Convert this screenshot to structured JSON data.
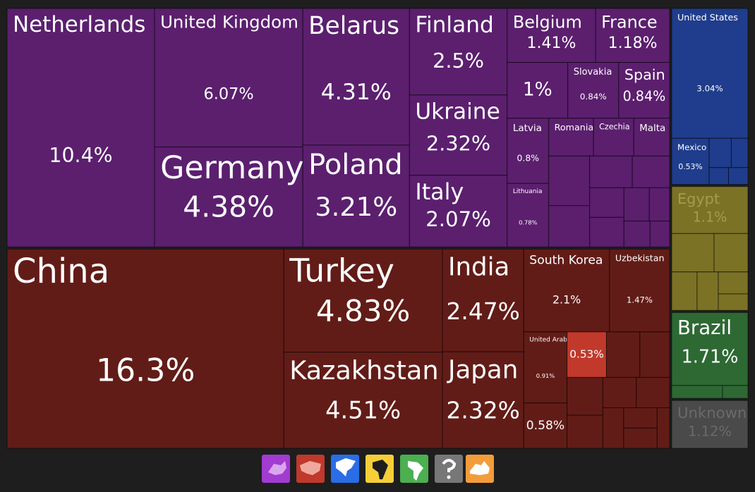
{
  "chart_data": {
    "type": "treemap",
    "series": [
      {
        "color": "#5b1f6e",
        "label_color": "#ffffff",
        "categories": [
          "Netherlands",
          "United Kingdom",
          "Germany",
          "Belarus",
          "Poland",
          "Finland",
          "Ukraine",
          "Italy",
          "Belgium",
          "France",
          null,
          "Slovakia",
          "Spain",
          "Latvia",
          "Lithuania",
          "Romania",
          "Czechia",
          "Malta",
          null,
          null,
          null,
          null,
          null,
          null,
          null,
          null,
          null,
          null
        ],
        "values": [
          10.4,
          6.07,
          4.38,
          4.31,
          3.21,
          2.5,
          2.32,
          2.07,
          1.41,
          1.18,
          1,
          0.84,
          0.84,
          0.8,
          0.78,
          0.5,
          0.45,
          0.4,
          0.6,
          0.5,
          0.4,
          0.35,
          0.3,
          0.3,
          0.25,
          0.2,
          0.2,
          0.15
        ],
        "value_labels": [
          "10.4%",
          "6.07%",
          "4.38%",
          "4.31%",
          "3.21%",
          "2.5%",
          "2.32%",
          "2.07%",
          "1.41%",
          "1.18%",
          "1%",
          "0.84%",
          "0.84%",
          "0.8%",
          "0.78%",
          null,
          null,
          null,
          null,
          null,
          null,
          null,
          null,
          null,
          null,
          null,
          null,
          null
        ]
      },
      {
        "color": "#621c17",
        "label_color": "#ffffff",
        "highlight_index": 9,
        "highlight_color": "#c0392b",
        "categories": [
          "China",
          "Turkey",
          "Kazakhstan",
          "India",
          "Japan",
          "South Korea",
          "Uzbekistan",
          "United Arab...",
          null,
          null,
          null,
          null,
          null,
          null,
          null,
          null,
          null,
          null,
          null,
          null
        ],
        "values": [
          16.3,
          4.83,
          4.51,
          2.47,
          2.32,
          2.1,
          1.47,
          0.91,
          0.58,
          0.53,
          0.45,
          0.4,
          0.4,
          0.35,
          0.3,
          0.3,
          0.25,
          0.2,
          0.2,
          0.15
        ],
        "value_labels": [
          "16.3%",
          "4.83%",
          "4.51%",
          "2.47%",
          "2.32%",
          "2.1%",
          "1.47%",
          "0.91%",
          "0.58%",
          "0.53%",
          null,
          null,
          null,
          null,
          null,
          null,
          null,
          null,
          null,
          null
        ]
      },
      {
        "color": "#1f3d8c",
        "label_color": "#ffffff",
        "categories": [
          "United States",
          "Mexico",
          null,
          null,
          null,
          null
        ],
        "values": [
          3.04,
          0.53,
          0.2,
          0.15,
          0.1,
          0.1
        ],
        "value_labels": [
          "3.04%",
          "0.53%",
          null,
          null,
          null,
          null
        ]
      },
      {
        "color": "#7b7226",
        "label_color": "#a89c4a",
        "categories": [
          "Egypt",
          null,
          null,
          null,
          null,
          null,
          null
        ],
        "values": [
          1.1,
          0.5,
          0.4,
          0.3,
          0.25,
          0.2,
          0.15
        ],
        "value_labels": [
          "1.1%",
          null,
          null,
          null,
          null,
          null,
          null
        ]
      },
      {
        "color": "#2e6934",
        "label_color": "#ffffff",
        "categories": [
          "Brazil",
          null,
          null
        ],
        "values": [
          1.71,
          0.2,
          0.1
        ],
        "value_labels": [
          "1.71%",
          null,
          null
        ]
      },
      {
        "color": "#4a4a4a",
        "label_color": "#6a6a6a",
        "categories": [
          "Unknown"
        ],
        "values": [
          1.12
        ],
        "value_labels": [
          "1.12%"
        ]
      }
    ]
  }
}
